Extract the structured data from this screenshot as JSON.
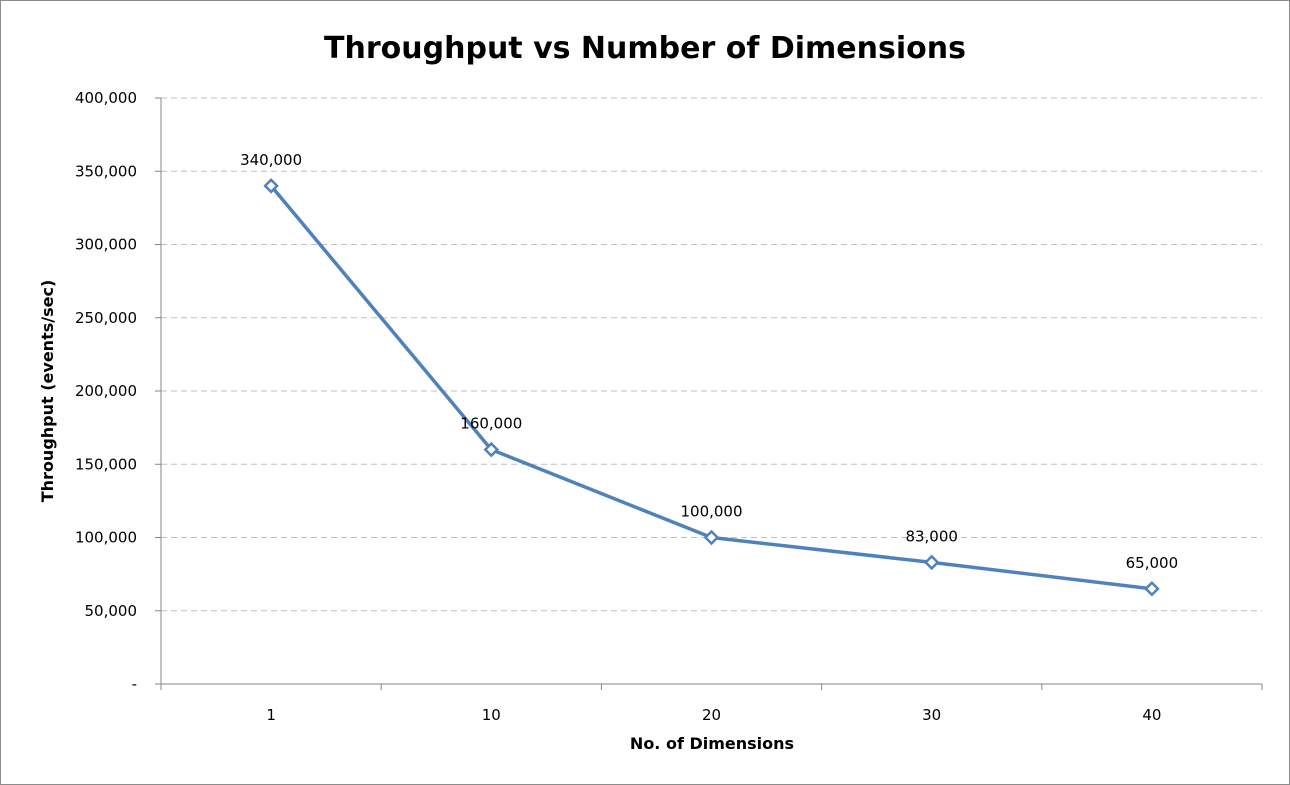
{
  "chart_data": {
    "type": "line",
    "title": "Throughput vs Number of Dimensions",
    "xlabel": "No. of Dimensions",
    "ylabel": "Throughput (events/sec)",
    "categories": [
      "1",
      "10",
      "20",
      "30",
      "40"
    ],
    "series": [
      {
        "values": [
          340000,
          160000,
          100000,
          83000,
          65000
        ],
        "data_labels": [
          "340,000",
          "160,000",
          "100,000",
          "83,000",
          "65,000"
        ],
        "color": "#4f81bd",
        "marker": "diamond-open"
      }
    ],
    "ylim": [
      0,
      400000
    ],
    "yticks": [
      0,
      50000,
      100000,
      150000,
      200000,
      250000,
      300000,
      350000,
      400000
    ],
    "ytick_labels": [
      "-",
      "50,000",
      "100,000",
      "150,000",
      "200,000",
      "250,000",
      "300,000",
      "350,000",
      "400,000"
    ],
    "grid": "horizontal-dashed",
    "grid_color": "#bfbfbf",
    "legend": "none"
  }
}
